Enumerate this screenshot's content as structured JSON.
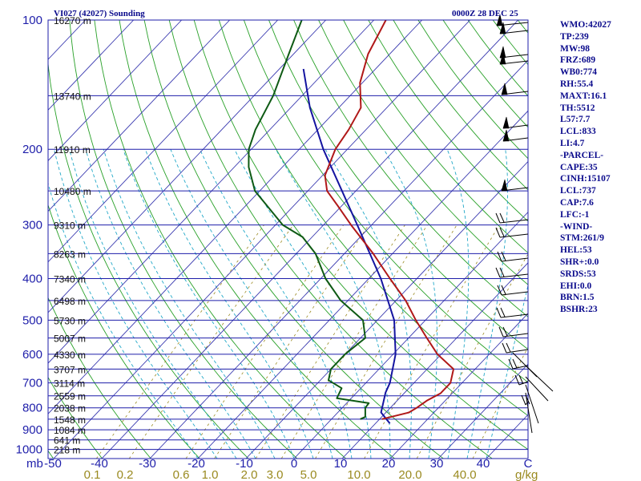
{
  "chart_data": {
    "type": "skew-t sounding",
    "title": "VI027 (42027) Sounding",
    "time": "0000Z 28 DEC 25",
    "pressure_axis_unit": "mb",
    "mixing_ratio_unit": "g/kg",
    "pressure_ticks": [
      100,
      200,
      300,
      400,
      500,
      600,
      700,
      800,
      900,
      1000
    ],
    "temperature_ticks": [
      "-50",
      "-40",
      "-30",
      "-20",
      "-10",
      "0",
      "10",
      "20",
      "30",
      "40",
      "C"
    ],
    "mixing_ratio_ticks": [
      "0.1",
      "0.2",
      "0.6",
      "1.0",
      "2.0",
      "3.0",
      "5.0",
      "10.0",
      "20.0",
      "40.0"
    ],
    "height_labels": [
      {
        "p": 100,
        "label": "16270 m"
      },
      {
        "p": 150,
        "label": "13740 m"
      },
      {
        "p": 200,
        "label": "11910 m"
      },
      {
        "p": 250,
        "label": "10480 m"
      },
      {
        "p": 300,
        "label": "9310 m"
      },
      {
        "p": 350,
        "label": "8263 m"
      },
      {
        "p": 400,
        "label": "7340 m"
      },
      {
        "p": 450,
        "label": "6498 m"
      },
      {
        "p": 500,
        "label": "5730 m"
      },
      {
        "p": 550,
        "label": "5007 m"
      },
      {
        "p": 600,
        "label": "4330 m"
      },
      {
        "p": 650,
        "label": "3707 m"
      },
      {
        "p": 700,
        "label": "3114 m"
      },
      {
        "p": 750,
        "label": "2559 m"
      },
      {
        "p": 800,
        "label": "2038 m"
      },
      {
        "p": 850,
        "label": "1548 m"
      },
      {
        "p": 900,
        "label": "1084 m"
      },
      {
        "p": 950,
        "label": "641 m"
      },
      {
        "p": 1000,
        "label": "218 m"
      }
    ],
    "temperature_profile": [
      {
        "p": 850,
        "t": 10.5
      },
      {
        "p": 820,
        "t": 14.8
      },
      {
        "p": 800,
        "t": 15.5
      },
      {
        "p": 770,
        "t": 16.2
      },
      {
        "p": 740,
        "t": 17.6
      },
      {
        "p": 700,
        "t": 17.6
      },
      {
        "p": 650,
        "t": 15.5
      },
      {
        "p": 600,
        "t": 9.2
      },
      {
        "p": 550,
        "t": 3.8
      },
      {
        "p": 500,
        "t": -2.0
      },
      {
        "p": 450,
        "t": -8.0
      },
      {
        "p": 400,
        "t": -15.6
      },
      {
        "p": 350,
        "t": -24.0
      },
      {
        "p": 300,
        "t": -34.3
      },
      {
        "p": 270,
        "t": -41.0
      },
      {
        "p": 250,
        "t": -46.0
      },
      {
        "p": 230,
        "t": -49.5
      },
      {
        "p": 200,
        "t": -52.5
      },
      {
        "p": 180,
        "t": -53.6
      },
      {
        "p": 160,
        "t": -55.4
      },
      {
        "p": 140,
        "t": -60.5
      },
      {
        "p": 120,
        "t": -64.5
      },
      {
        "p": 100,
        "t": -67.5
      }
    ],
    "dewpoint_profile": [
      {
        "p": 850,
        "t": 6.0
      },
      {
        "p": 840,
        "t": 6.6
      },
      {
        "p": 800,
        "t": 4.8
      },
      {
        "p": 780,
        "t": 4.6
      },
      {
        "p": 760,
        "t": -3.0
      },
      {
        "p": 720,
        "t": -4.0
      },
      {
        "p": 690,
        "t": -8.3
      },
      {
        "p": 650,
        "t": -10.0
      },
      {
        "p": 600,
        "t": -10.0
      },
      {
        "p": 550,
        "t": -9.0
      },
      {
        "p": 500,
        "t": -13.0
      },
      {
        "p": 450,
        "t": -21.5
      },
      {
        "p": 400,
        "t": -29.0
      },
      {
        "p": 350,
        "t": -36.0
      },
      {
        "p": 320,
        "t": -42.0
      },
      {
        "p": 300,
        "t": -48.5
      },
      {
        "p": 250,
        "t": -61.0
      },
      {
        "p": 220,
        "t": -67.0
      },
      {
        "p": 200,
        "t": -70.5
      },
      {
        "p": 180,
        "t": -73.0
      },
      {
        "p": 150,
        "t": -76.0
      },
      {
        "p": 120,
        "t": -81.0
      },
      {
        "p": 100,
        "t": -85.0
      }
    ],
    "parcel_profile": [
      {
        "p": 870,
        "t": 13.0
      },
      {
        "p": 820,
        "t": 9.0
      },
      {
        "p": 737,
        "t": 6.0
      },
      {
        "p": 700,
        "t": 5.0
      },
      {
        "p": 600,
        "t": 0.5
      },
      {
        "p": 500,
        "t": -6.5
      },
      {
        "p": 400,
        "t": -17.5
      },
      {
        "p": 300,
        "t": -33.0
      },
      {
        "p": 200,
        "t": -55.0
      },
      {
        "p": 160,
        "t": -66.0
      },
      {
        "p": 130,
        "t": -75.0
      }
    ],
    "stats": [
      "WMO:42027",
      "TP:239",
      "MW:98",
      "FRZ:689",
      "WB0:774",
      "RH:55.4",
      "MAXT:16.1",
      "TH:5512",
      "L57:7.7",
      "LCL:833",
      "LI:4.7",
      "-PARCEL-",
      "CAPE:35",
      "CINH:15107",
      "LCL:737",
      "CAP:7.6",
      "LFC:-1",
      "-WIND-",
      "STM:261/9",
      "HEL:53",
      "SHR+:0.0",
      "SRDS:53",
      "EHI:0.0",
      "BRN:1.5",
      "BSHR:23"
    ],
    "colors": {
      "temperature": "#b01818",
      "dewpoint": "#0e5a14",
      "parcel": "#1414a0",
      "isobar": "#1e1eaa",
      "isotherm": "#3a3ab0",
      "dry_adiabat": "#28a028",
      "moist_adiabat": "#22a8c8",
      "mixing_ratio": "#9a8a20",
      "text": "#0a0a8c"
    }
  }
}
